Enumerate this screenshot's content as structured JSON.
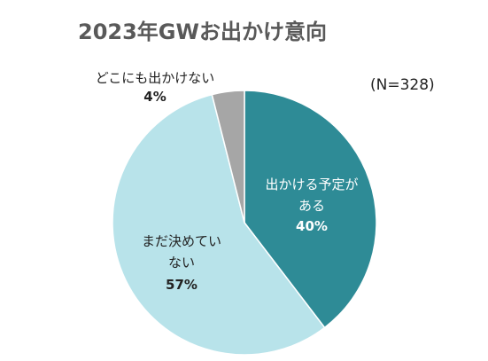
{
  "chart_data": {
    "type": "pie",
    "title": "2023年GWお出かけ意向",
    "annotation": "(N=328)",
    "categories": [
      "出かける予定がある",
      "まだ決めていない",
      "どこにも出かけない"
    ],
    "values": [
      40,
      57,
      4
    ],
    "value_labels": [
      "40%",
      "57%",
      "4%"
    ],
    "colors": [
      "#2e8b96",
      "#b8e3ea",
      "#a6a6a6"
    ]
  }
}
